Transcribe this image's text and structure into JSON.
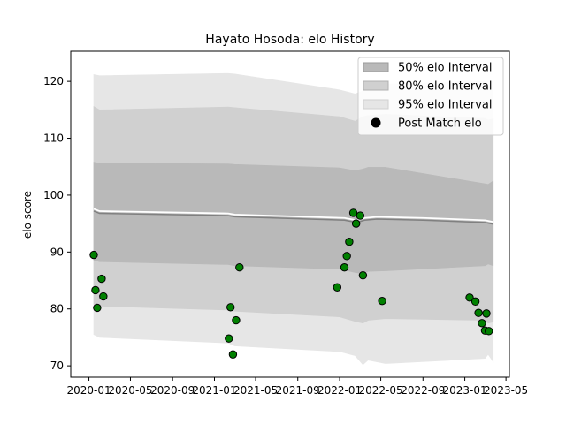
{
  "chart_data": {
    "type": "line",
    "title": "Hayato Hosoda: elo History",
    "xlabel": "",
    "ylabel": "elo score",
    "xlim": [
      "2019-11-09",
      "2023-05-11"
    ],
    "ylim": [
      68,
      125.3
    ],
    "x_ticks": [
      "2020-01",
      "2020-05",
      "2020-09",
      "2021-01",
      "2021-05",
      "2021-09",
      "2022-01",
      "2022-05",
      "2022-09",
      "2023-01",
      "2023-05"
    ],
    "y_ticks": [
      70,
      80,
      90,
      100,
      110,
      120
    ],
    "grid": false,
    "legend": {
      "placement": "upper right",
      "entries": [
        "50% elo Interval",
        "80% elo Interval",
        "95% elo Interval",
        "Post Match elo"
      ]
    },
    "colors": {
      "band95": "#e6e6e6",
      "band80": "#d0d0d0",
      "band50": "#b9b9b9",
      "mean_line": "#808080",
      "highlight_line": "#ffffff",
      "points": "#008000",
      "point_edge": "#000000"
    },
    "mean_series": {
      "x": [
        "2020-01-15",
        "2020-02-01",
        "2021-02-10",
        "2021-03-01",
        "2022-01-15",
        "2022-02-20",
        "2022-03-15",
        "2022-04-20",
        "2022-09-01",
        "2023-03-01",
        "2023-03-25"
      ],
      "y": [
        97.2,
        96.8,
        96.4,
        96.2,
        95.6,
        95.2,
        95.6,
        95.8,
        95.6,
        95.2,
        94.9
      ]
    },
    "bands": [
      {
        "name": "95% elo Interval",
        "x": [
          "2020-01-15",
          "2020-02-01",
          "2021-02-10",
          "2021-03-01",
          "2022-01-01",
          "2022-02-15",
          "2022-03-10",
          "2022-03-25",
          "2022-05-15",
          "2023-03-01",
          "2023-03-10",
          "2023-03-25"
        ],
        "upper": [
          121.2,
          121.0,
          121.4,
          121.3,
          118.5,
          117.8,
          118.3,
          119.5,
          119.5,
          120.0,
          119.0,
          120.3
        ],
        "lower": [
          75.5,
          75.0,
          74.0,
          73.5,
          72.5,
          71.8,
          70.2,
          71.0,
          70.4,
          71.3,
          72.0,
          70.7
        ]
      },
      {
        "name": "80% elo Interval",
        "x": [
          "2020-01-15",
          "2020-02-01",
          "2021-02-10",
          "2021-03-01",
          "2022-01-01",
          "2022-02-15",
          "2022-03-10",
          "2022-03-25",
          "2022-05-15",
          "2023-03-01",
          "2023-03-10",
          "2023-03-25"
        ],
        "upper": [
          115.6,
          115.0,
          115.5,
          115.4,
          113.8,
          113.0,
          113.8,
          114.0,
          114.2,
          113.5,
          113.2,
          113.4
        ],
        "lower": [
          80.8,
          80.5,
          79.8,
          79.6,
          78.6,
          77.8,
          77.5,
          78.0,
          78.3,
          78.0,
          77.5,
          77.7
        ]
      },
      {
        "name": "50% elo Interval",
        "x": [
          "2020-01-15",
          "2020-02-01",
          "2021-02-10",
          "2021-03-01",
          "2022-01-01",
          "2022-02-15",
          "2022-03-10",
          "2022-03-25",
          "2022-05-15",
          "2023-03-01",
          "2023-03-10",
          "2023-03-25"
        ],
        "upper": [
          105.8,
          105.6,
          105.5,
          105.4,
          104.8,
          104.3,
          104.6,
          104.9,
          104.9,
          102.0,
          101.9,
          102.5
        ],
        "lower": [
          88.6,
          88.3,
          87.8,
          87.6,
          87.0,
          86.4,
          86.2,
          86.6,
          86.7,
          87.6,
          87.9,
          87.6
        ]
      }
    ],
    "points": {
      "name": "Post Match elo",
      "x": [
        "2020-01-15",
        "2020-01-20",
        "2020-01-25",
        "2020-02-07",
        "2020-02-12",
        "2021-02-12",
        "2021-02-17",
        "2021-02-24",
        "2021-03-05",
        "2021-03-15",
        "2021-12-25",
        "2022-01-15",
        "2022-01-22",
        "2022-01-29",
        "2022-02-10",
        "2022-02-18",
        "2022-03-02",
        "2022-03-10",
        "2022-05-05",
        "2023-01-15",
        "2023-02-01",
        "2023-02-10",
        "2023-02-20",
        "2023-03-01",
        "2023-03-05",
        "2023-03-12"
      ],
      "y": [
        89.5,
        83.3,
        80.2,
        85.3,
        82.2,
        74.8,
        80.3,
        72.0,
        78.0,
        87.3,
        83.8,
        87.3,
        89.3,
        91.8,
        96.9,
        95.0,
        96.4,
        85.9,
        81.4,
        82.0,
        81.3,
        79.3,
        77.5,
        76.2,
        79.2,
        76.1
      ]
    }
  }
}
